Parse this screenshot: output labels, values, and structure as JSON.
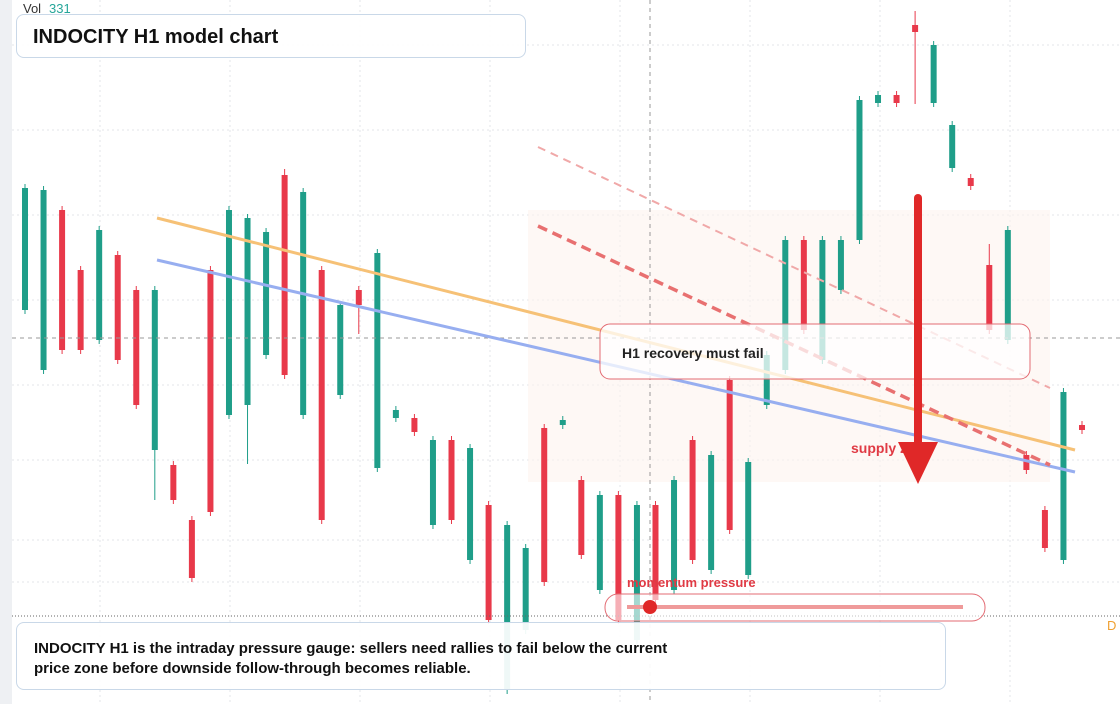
{
  "chart_data": {
    "type": "candlestick",
    "title": "INDOCITY H1 model chart",
    "volume_label": "Vol",
    "volume_value": "331",
    "annotation": "H1 recovery must fail",
    "zone_label": "supply zone",
    "gauge_label": "momentum pressure",
    "caption": "INDOCITY H1 is the intraday pressure gauge: sellers need rallies to fail below the current price zone before downside follow-through becomes reliable.",
    "edge_label": "D",
    "up_color": "#1f9e89",
    "down_color": "#e8394a",
    "ylim": [
      0,
      704
    ],
    "open": [
      394,
      334,
      494,
      434,
      364,
      449,
      414,
      254,
      239,
      184,
      434,
      289,
      299,
      349,
      529,
      289,
      434,
      309,
      414,
      236,
      286,
      286,
      179,
      264,
      144,
      199,
      14,
      74,
      276,
      279,
      224,
      114,
      209,
      64,
      199,
      114,
      264,
      134,
      324,
      129,
      299,
      334,
      464,
      344,
      414,
      464,
      601,
      609,
      679,
      601,
      536,
      526,
      439,
      364,
      249,
      194,
      144,
      279
    ],
    "high": [
      520,
      518,
      498,
      438,
      478,
      453,
      418,
      418,
      243,
      188,
      438,
      498,
      490,
      476,
      535,
      516,
      438,
      403,
      418,
      455,
      298,
      290,
      268,
      268,
      260,
      203,
      183,
      160,
      280,
      288,
      228,
      213,
      213,
      203,
      203,
      228,
      268,
      253,
      328,
      246,
      353,
      468,
      468,
      468,
      468,
      608,
      613,
      613,
      693,
      663,
      583,
      530,
      460,
      478,
      253,
      198,
      316,
      283
    ],
    "low": [
      390,
      330,
      350,
      350,
      360,
      340,
      295,
      204,
      200,
      122,
      188,
      285,
      240,
      345,
      325,
      285,
      180,
      305,
      370,
      232,
      282,
      268,
      175,
      180,
      140,
      80,
      10,
      70,
      118,
      275,
      145,
      110,
      80,
      60,
      100,
      110,
      140,
      130,
      170,
      125,
      295,
      330,
      370,
      340,
      410,
      460,
      597,
      597,
      600,
      597,
      532,
      514,
      370,
      360,
      230,
      152,
      140,
      270
    ],
    "close": [
      516,
      514,
      354,
      354,
      474,
      344,
      299,
      414,
      204,
      126,
      192,
      494,
      486,
      472,
      329,
      512,
      184,
      399,
      399,
      451,
      294,
      272,
      264,
      184,
      256,
      84,
      179,
      156,
      122,
      284,
      149,
      209,
      84,
      199,
      104,
      224,
      144,
      249,
      174,
      242,
      349,
      464,
      374,
      464,
      464,
      604,
      609,
      601,
      672,
      659,
      579,
      518,
      374,
      474,
      234,
      156,
      312,
      274
    ]
  }
}
